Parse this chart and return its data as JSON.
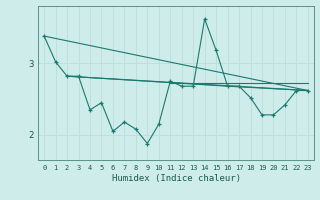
{
  "xlabel": "Humidex (Indice chaleur)",
  "bg_color": "#ceecea",
  "line_color": "#1a7a6e",
  "grid_color": "#c0dedd",
  "xlim": [
    -0.5,
    23.5
  ],
  "ylim": [
    1.65,
    3.8
  ],
  "yticks": [
    2,
    3
  ],
  "xticks": [
    0,
    1,
    2,
    3,
    4,
    5,
    6,
    7,
    8,
    9,
    10,
    11,
    12,
    13,
    14,
    15,
    16,
    17,
    18,
    19,
    20,
    21,
    22,
    23
  ],
  "series": [
    [
      0,
      3.38
    ],
    [
      1,
      3.02
    ],
    [
      2,
      2.82
    ],
    [
      3,
      2.82
    ],
    [
      4,
      2.35
    ],
    [
      5,
      2.45
    ],
    [
      6,
      2.05
    ],
    [
      7,
      2.18
    ],
    [
      8,
      2.08
    ],
    [
      9,
      1.88
    ],
    [
      10,
      2.15
    ],
    [
      11,
      2.75
    ],
    [
      12,
      2.68
    ],
    [
      13,
      2.68
    ],
    [
      14,
      3.62
    ],
    [
      15,
      3.18
    ],
    [
      16,
      2.68
    ],
    [
      17,
      2.68
    ],
    [
      18,
      2.52
    ],
    [
      19,
      2.28
    ],
    [
      20,
      2.28
    ],
    [
      21,
      2.42
    ],
    [
      22,
      2.62
    ],
    [
      23,
      2.62
    ]
  ],
  "line2": [
    [
      0,
      3.38
    ],
    [
      23,
      2.62
    ]
  ],
  "line3": [
    [
      2,
      2.82
    ],
    [
      23,
      2.62
    ]
  ],
  "line4": [
    [
      2,
      2.82
    ],
    [
      16,
      2.68
    ],
    [
      23,
      2.62
    ]
  ],
  "hline": [
    [
      11,
      2.72
    ],
    [
      23,
      2.72
    ]
  ]
}
